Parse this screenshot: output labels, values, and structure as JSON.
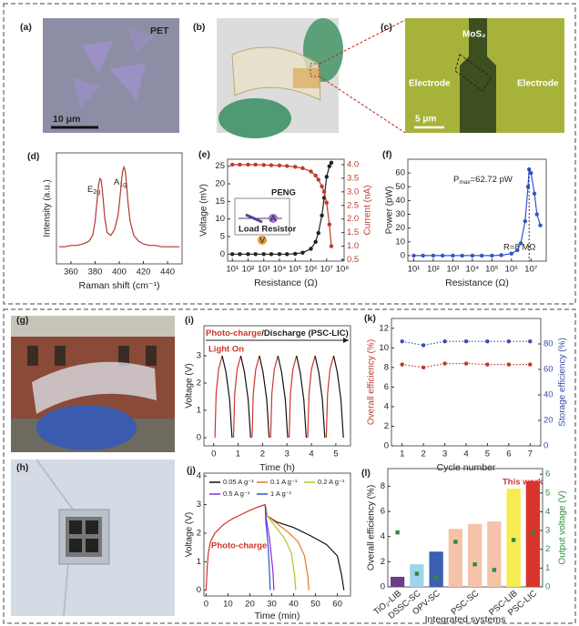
{
  "photo_a": {
    "label": "(a)",
    "substrate": "PET",
    "scale_bar": "10 μm"
  },
  "photo_b": {
    "label": "(b)"
  },
  "photo_c": {
    "label": "(c)",
    "material": "MoS₂",
    "electrode_left": "Electrode",
    "electrode_right": "Electrode",
    "scale_bar": "5 μm"
  },
  "photo_g": {
    "label": "(g)"
  },
  "photo_h": {
    "label": "(h)"
  },
  "chart_data": [
    {
      "label": "(d)",
      "type": "line",
      "xlabel": "Raman shift (cm⁻¹)",
      "ylabel": "Intensity (a.u.)",
      "xlim": [
        348,
        452
      ],
      "xticks": [
        360,
        380,
        400,
        420,
        440
      ],
      "ylim": [
        0,
        0.78
      ],
      "annotations": [
        {
          "text": "E",
          "sub": "2g"
        },
        {
          "text": "A",
          "sub": "1g"
        }
      ],
      "series": [
        {
          "color": "#b03a2e",
          "x": [
            350,
            355,
            360,
            365,
            370,
            375,
            378,
            380,
            382,
            383,
            384,
            385,
            386,
            387,
            388,
            390,
            393,
            396,
            399,
            401,
            402,
            403,
            404,
            405,
            406,
            407,
            409,
            412,
            416,
            420,
            425,
            430,
            435,
            440,
            445,
            450
          ],
          "values": [
            0.12,
            0.12,
            0.13,
            0.13,
            0.14,
            0.16,
            0.2,
            0.3,
            0.48,
            0.56,
            0.6,
            0.59,
            0.52,
            0.42,
            0.32,
            0.22,
            0.2,
            0.24,
            0.34,
            0.5,
            0.6,
            0.66,
            0.68,
            0.65,
            0.56,
            0.45,
            0.3,
            0.2,
            0.16,
            0.14,
            0.13,
            0.13,
            0.12,
            0.12,
            0.12,
            0.12
          ]
        }
      ]
    },
    {
      "label": "(e)",
      "type": "line",
      "xlog": true,
      "xlabel": "Resistance (Ω)",
      "ylabel": "Voltage (mV)",
      "y2label": "Current (nA)",
      "y2color": "#c0392b",
      "xlim": [
        5,
        130000000
      ],
      "xticks": [
        {
          "value": 10,
          "label": "10¹"
        },
        {
          "value": 100,
          "label": "10²"
        },
        {
          "value": 1000,
          "label": "10³"
        },
        {
          "value": 10000,
          "label": "10⁴"
        },
        {
          "value": 100000,
          "label": "10⁵"
        },
        {
          "value": 1000000,
          "label": "10⁶"
        },
        {
          "value": 10000000,
          "label": "10⁷"
        },
        {
          "value": 100000000,
          "label": "10⁸"
        }
      ],
      "ylim": [
        -2,
        27
      ],
      "yticks": [
        0,
        5,
        10,
        15,
        20,
        25
      ],
      "y2lim": [
        0.45,
        4.2
      ],
      "y2ticks": [
        {
          "value": 0.5,
          "label": "0.5"
        },
        {
          "value": 1,
          "label": "1.0"
        },
        {
          "value": 1.5,
          "label": "1.5"
        },
        {
          "value": 2,
          "label": "2.0"
        },
        {
          "value": 2.5,
          "label": "2.5"
        },
        {
          "value": 3,
          "label": "3.0"
        },
        {
          "value": 3.5,
          "label": "3.5"
        },
        {
          "value": 4,
          "label": "4.0"
        }
      ],
      "inset": {
        "title": "PENG",
        "ammeter": "A",
        "voltmeter": "V",
        "resistor": "Load Resistor"
      },
      "x": [
        10,
        30,
        100,
        300,
        1000,
        3000,
        10000,
        30000,
        100000,
        300000,
        1000000,
        2000000,
        3000000,
        5000000,
        7000000,
        10000000,
        15000000,
        20000000
      ],
      "series": [
        {
          "color": "#222222",
          "marker": "circle",
          "values": [
            0,
            0,
            0,
            0,
            0,
            0,
            0,
            0,
            0.1,
            0.4,
            1.5,
            3.5,
            6,
            11,
            16,
            22,
            25,
            26
          ]
        },
        {
          "color": "#c0392b",
          "marker": "circle",
          "axis": "y2",
          "values": [
            4,
            4,
            4,
            4,
            3.99,
            3.98,
            3.97,
            3.95,
            3.92,
            3.87,
            3.75,
            3.6,
            3.45,
            3.2,
            3,
            2.6,
            1.8,
            1
          ]
        }
      ]
    },
    {
      "label": "(f)",
      "type": "line",
      "xlog": true,
      "xlabel": "Resistance (Ω)",
      "ylabel": "Power (pW)",
      "xlim": [
        5,
        60000000
      ],
      "xticks": [
        {
          "value": 10,
          "label": "10¹"
        },
        {
          "value": 100,
          "label": "10²"
        },
        {
          "value": 1000,
          "label": "10³"
        },
        {
          "value": 10000,
          "label": "10⁴"
        },
        {
          "value": 100000,
          "label": "10⁵"
        },
        {
          "value": 1000000,
          "label": "10⁶"
        },
        {
          "value": 10000000,
          "label": "10⁷"
        }
      ],
      "ylim": [
        -4,
        70
      ],
      "yticks": [
        0,
        10,
        20,
        30,
        40,
        50,
        60
      ],
      "annotations": [
        {
          "text": "P",
          "sub": "max",
          "rest": "=62.72 pW"
        },
        {
          "text": "R=8 MΩ"
        }
      ],
      "x": [
        10,
        30,
        100,
        300,
        1000,
        3000,
        10000,
        30000,
        100000,
        300000,
        1000000,
        2000000,
        3000000,
        5000000,
        7000000,
        8000000,
        10000000,
        15000000,
        20000000,
        30000000
      ],
      "series": [
        {
          "color": "#3355cc",
          "marker": "circle",
          "values": [
            0,
            0,
            0,
            0,
            0,
            0,
            0,
            0,
            0,
            0.3,
            1.5,
            4,
            9,
            25,
            50,
            62.72,
            60,
            45,
            30,
            22
          ]
        }
      ]
    },
    {
      "label": "(i)",
      "type": "line",
      "xlabel": "Time (h)",
      "ylabel": "Voltage (V)",
      "xlim": [
        -0.4,
        5.6
      ],
      "xticks": [
        0,
        1,
        2,
        3,
        4,
        5
      ],
      "ylim": [
        -0.3,
        4.1
      ],
      "yticks": [
        0,
        1,
        2,
        3
      ],
      "header": {
        "charge": "Photo-charge",
        "discharge": "/Discharge (PSC-LIC)"
      },
      "annotation": "Light On",
      "series": [
        {
          "color": "#d0342c",
          "x": [
            0.05,
            0.1,
            0.2,
            0.35,
            null,
            0.81,
            0.86,
            0.96,
            1.11,
            null,
            1.57,
            1.62,
            1.72,
            1.87,
            null,
            2.33,
            2.38,
            2.48,
            2.63,
            null,
            3.09,
            3.14,
            3.24,
            3.39,
            null,
            3.85,
            3.9,
            4,
            4.15,
            null,
            4.61,
            4.66,
            4.76,
            4.91
          ],
          "values": [
            0,
            1.6,
            2.5,
            3,
            null,
            0,
            1.6,
            2.5,
            3,
            null,
            0,
            1.6,
            2.5,
            3,
            null,
            0,
            1.6,
            2.5,
            3,
            null,
            0,
            1.6,
            2.5,
            3,
            null,
            0,
            1.6,
            2.5,
            3,
            null,
            0,
            1.6,
            2.5,
            3
          ]
        },
        {
          "color": "#111111",
          "x": [
            0.35,
            0.5,
            0.65,
            0.75,
            null,
            1.11,
            1.26,
            1.41,
            1.51,
            null,
            1.87,
            2.02,
            2.17,
            2.27,
            null,
            2.63,
            2.78,
            2.93,
            3.03,
            null,
            3.39,
            3.54,
            3.69,
            3.79,
            null,
            4.15,
            4.3,
            4.45,
            4.55,
            null,
            4.91,
            5.06,
            5.21,
            5.31
          ],
          "values": [
            3,
            2.4,
            1.4,
            0,
            null,
            3,
            2.4,
            1.4,
            0,
            null,
            3,
            2.4,
            1.4,
            0,
            null,
            3,
            2.4,
            1.4,
            0,
            null,
            3,
            2.4,
            1.4,
            0,
            null,
            3,
            2.4,
            1.4,
            0,
            null,
            3,
            2.4,
            1.4,
            0
          ]
        }
      ]
    },
    {
      "label": "(j)",
      "type": "line",
      "xlabel": "Time (min)",
      "ylabel": "Voltage (V)",
      "xlim": [
        -1,
        66
      ],
      "xticks": [
        0,
        10,
        20,
        30,
        40,
        50,
        60
      ],
      "ylim": [
        -0.2,
        4.1
      ],
      "yticks": [
        0,
        1,
        2,
        3,
        4
      ],
      "annotation": "Photo-charge",
      "series": [
        {
          "color": "#d0342c",
          "x": [
            0,
            0.5,
            1,
            2,
            4,
            8,
            12,
            16,
            20,
            24,
            27
          ],
          "values": [
            0,
            0.8,
            1.3,
            1.7,
            2,
            2.3,
            2.5,
            2.65,
            2.8,
            2.92,
            3
          ]
        },
        {
          "name": "0.05 A g⁻¹",
          "color": "#111111",
          "x": [
            27,
            28,
            32,
            40,
            48,
            55,
            60,
            62,
            63
          ],
          "values": [
            3,
            2.6,
            2.4,
            2.2,
            1.9,
            1.6,
            1.2,
            0.5,
            0
          ]
        },
        {
          "name": "0.1 A g⁻¹",
          "color": "#e07b28",
          "x": [
            27,
            28,
            33,
            38,
            42,
            45,
            46.5,
            47
          ],
          "values": [
            3,
            2.6,
            2.3,
            2,
            1.7,
            1.2,
            0.5,
            0
          ]
        },
        {
          "name": "0.2 A g⁻¹",
          "color": "#b8c425",
          "x": [
            27,
            28,
            32,
            36,
            39,
            40.5,
            41
          ],
          "values": [
            3,
            2.6,
            2.2,
            1.8,
            1.3,
            0.5,
            0
          ]
        },
        {
          "name": "0.5 A g⁻¹",
          "color": "#8a2be2",
          "x": [
            27,
            27.5,
            29,
            30.5,
            31
          ],
          "values": [
            3,
            2.5,
            1.8,
            0.7,
            0
          ]
        },
        {
          "name": "1 A g⁻¹",
          "color": "#3050d0",
          "x": [
            27,
            27.3,
            28.3,
            29,
            29.3
          ],
          "values": [
            3,
            2.4,
            1.6,
            0.6,
            0
          ]
        }
      ]
    },
    {
      "label": "(k)",
      "type": "line",
      "xlabel": "Cycle number",
      "ylabel": "Overall efficiency (%)",
      "ycolor": "#c0392b",
      "y2label": "Storage efficiency (%)",
      "y2color": "#3a4fa8",
      "xlim": [
        0.5,
        7.5
      ],
      "xticks": [
        1,
        2,
        3,
        4,
        5,
        6,
        7
      ],
      "ylim": [
        0,
        13
      ],
      "yticks": [
        0,
        2,
        4,
        6,
        8,
        10,
        12
      ],
      "y2lim": [
        0,
        100
      ],
      "y2ticks": [
        0,
        20,
        40,
        60,
        80
      ],
      "x": [
        1,
        2,
        3,
        4,
        5,
        6,
        7
      ],
      "series": [
        {
          "color": "#c0392b",
          "marker": "circle",
          "dash": true,
          "values": [
            8.3,
            8,
            8.4,
            8.4,
            8.3,
            8.3,
            8.3
          ]
        },
        {
          "color": "#3a4fa8",
          "marker": "circle",
          "dash": true,
          "axis": "y2",
          "values": [
            82,
            79,
            82,
            82,
            82,
            82,
            82
          ]
        }
      ]
    },
    {
      "label": "(l)",
      "type": "bar",
      "xlabel": "Integrated systems",
      "ylabel": "Overall efficiency (%)",
      "y2label": "Output voltage (V)",
      "y2color": "#2e8b3e",
      "ylim": [
        0,
        9.4
      ],
      "yticks": [
        0,
        2,
        4,
        6,
        8
      ],
      "y2lim": [
        0,
        6.3
      ],
      "y2ticks": [
        0,
        1,
        2,
        3,
        4,
        5,
        6
      ],
      "annotation": "This  work",
      "categories": [
        "TiO₂-LIB",
        "DSSC-SC",
        "OPV-SC",
        null,
        "PSC-SC",
        null,
        "PSC-LIB",
        "PSC-LIC"
      ],
      "series": [
        {
          "colors": [
            "#6b3f87",
            "#9fd4ea",
            "#3a5fb0",
            "#f5c3a8",
            "#f5c3a8",
            "#f5c3a8",
            "#f7ec50",
            "#d9342b"
          ],
          "values": [
            0.8,
            1.8,
            2.8,
            4.6,
            5,
            5.2,
            7.8,
            8.4
          ]
        },
        {
          "color": "#2e8b3e",
          "marker": "square",
          "axis": "y2",
          "values": [
            2.9,
            0.7,
            0.5,
            2.4,
            1.2,
            0.9,
            2.5,
            2.9
          ]
        }
      ]
    }
  ]
}
